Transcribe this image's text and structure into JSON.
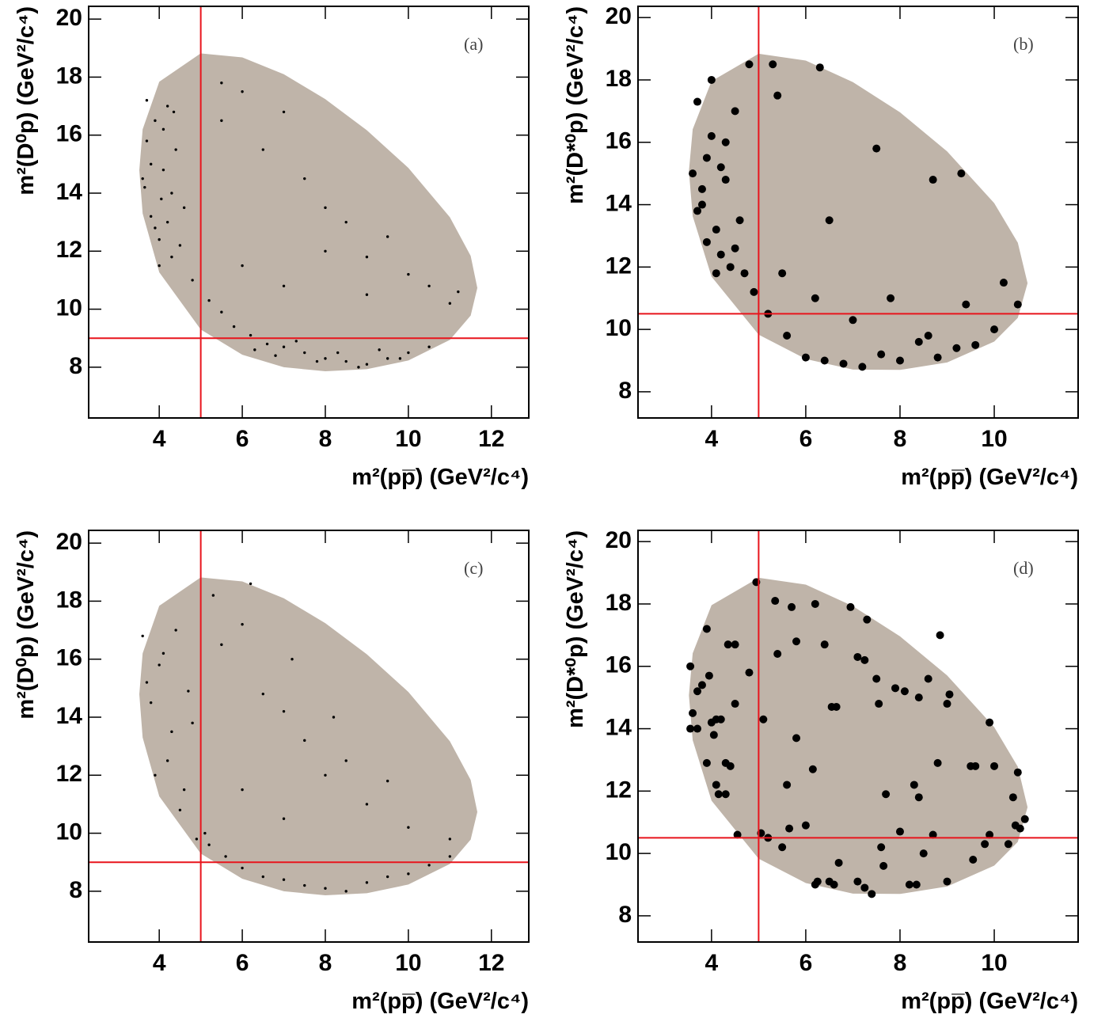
{
  "chart_data": [
    {
      "type": "scatter",
      "label": "(a)",
      "x_label": "m²(pp̅) (GeV²/c⁴)",
      "y_label": "m²(D⁰p) (GeV²/c⁴)",
      "xlim": [
        2.3,
        12.9
      ],
      "ylim": [
        6.25,
        20.44
      ],
      "xticks": [
        4,
        6,
        8,
        10,
        12
      ],
      "yticks": [
        8,
        10,
        12,
        14,
        16,
        18,
        20
      ],
      "color": "#000000",
      "marker_size": 1.7,
      "vline": 5,
      "hline": 9,
      "line_color": "#e8141c",
      "region": {
        "color": "#bfb4a9",
        "x": [
          3.52,
          3.6,
          4,
          5,
          6,
          7,
          8,
          9,
          10,
          11,
          11.5,
          11.66,
          11.5,
          11,
          10,
          9,
          8,
          7,
          6,
          5,
          4,
          3.6
        ],
        "y": [
          14.79,
          16.2,
          17.84,
          18.82,
          18.68,
          18.1,
          17.24,
          16.17,
          14.87,
          13.17,
          11.84,
          10.73,
          9.78,
          8.94,
          8.23,
          7.93,
          7.86,
          8.0,
          8.43,
          9.3,
          11.27,
          13.3
        ]
      },
      "x": [
        3.6,
        3.7,
        3.8,
        3.9,
        4.0,
        4.1,
        4.2,
        4.3,
        4.4,
        4.5,
        3.7,
        3.9,
        4.1,
        4.3,
        3.8,
        4.0,
        4.2,
        4.6,
        4.8,
        3.65,
        4.05,
        4.35,
        5.2,
        5.5,
        5.8,
        6.2,
        6.6,
        7.0,
        7.5,
        8.0,
        8.5,
        9.0,
        9.5,
        10.0,
        10.5,
        6.3,
        6.8,
        7.3,
        7.8,
        8.3,
        8.8,
        9.3,
        9.8,
        6,
        7,
        8,
        9,
        10,
        11,
        5.5,
        6.5,
        7.5,
        8.5,
        9.5,
        10.5,
        11.2,
        6,
        7,
        8,
        9,
        5.5
      ],
      "y": [
        14.5,
        15.8,
        13.2,
        16.5,
        12.4,
        14.8,
        13.0,
        11.8,
        15.5,
        12.2,
        17.2,
        12.8,
        16.2,
        14.0,
        15.0,
        11.5,
        17.0,
        13.5,
        11.0,
        14.2,
        13.8,
        16.8,
        10.3,
        9.9,
        9.4,
        9.1,
        8.8,
        8.7,
        8.5,
        8.3,
        8.2,
        8.1,
        8.3,
        8.5,
        8.7,
        8.6,
        8.4,
        8.9,
        8.2,
        8.5,
        8.0,
        8.6,
        8.3,
        11.5,
        10.8,
        12.0,
        10.5,
        11.2,
        10.2,
        16.5,
        15.5,
        14.5,
        13.0,
        12.5,
        10.8,
        10.6,
        17.5,
        16.8,
        13.5,
        11.8,
        17.8
      ]
    },
    {
      "type": "scatter",
      "label": "(b)",
      "x_label": "m²(pp̅) (GeV²/c⁴)",
      "y_label": "m²(D*⁰p) (GeV²/c⁴)",
      "xlim": [
        2.44,
        11.78
      ],
      "ylim": [
        7.16,
        20.36
      ],
      "xticks": [
        4,
        6,
        8,
        10
      ],
      "yticks": [
        8,
        10,
        12,
        14,
        16,
        18,
        20
      ],
      "color": "#000000",
      "marker_size": 5,
      "vline": 5,
      "hline": 10.5,
      "line_color": "#e8141c",
      "region": {
        "color": "#bfb4a9",
        "x": [
          3.52,
          3.6,
          4,
          5,
          6,
          7,
          8,
          9,
          10,
          10.5,
          10.706,
          10.5,
          10,
          9,
          8,
          7,
          6,
          5,
          4,
          3.6
        ],
        "y": [
          15.07,
          16.42,
          17.96,
          18.84,
          18.62,
          17.93,
          16.96,
          15.71,
          14.05,
          12.78,
          11.48,
          10.37,
          9.61,
          8.94,
          8.7,
          8.71,
          9.05,
          9.83,
          11.69,
          13.63
        ]
      },
      "x": [
        3.6,
        3.7,
        3.8,
        3.9,
        4.0,
        4.1,
        4.2,
        4.3,
        4.4,
        4.5,
        4.6,
        4.7,
        3.7,
        3.9,
        4.1,
        4.3,
        4.5,
        3.8,
        4.0,
        4.2,
        4.8,
        4.9,
        5.2,
        5.6,
        6.0,
        6.4,
        6.8,
        7.2,
        7.6,
        8.0,
        8.4,
        8.8,
        9.2,
        9.6,
        10.0,
        5.5,
        6.2,
        7.0,
        7.8,
        8.6,
        9.4,
        10.2,
        10.5,
        5.4,
        6.3,
        7.5,
        8.7,
        9.3,
        5.3,
        6.5
      ],
      "y": [
        15.0,
        13.8,
        14.5,
        12.8,
        16.2,
        13.2,
        12.4,
        14.8,
        12.0,
        17.0,
        13.5,
        11.8,
        17.3,
        15.5,
        11.8,
        16.0,
        12.6,
        14.0,
        18.0,
        15.2,
        18.5,
        11.2,
        10.5,
        9.8,
        9.1,
        9.0,
        8.9,
        8.8,
        9.2,
        9.0,
        9.6,
        9.1,
        9.4,
        9.5,
        10.0,
        11.8,
        11.0,
        10.3,
        11.0,
        9.8,
        10.8,
        11.5,
        10.8,
        17.5,
        18.4,
        15.8,
        14.8,
        15.0,
        18.5,
        13.5
      ]
    },
    {
      "type": "scatter",
      "label": "(c)",
      "x_label": "m²(pp̅) (GeV²/c⁴)",
      "y_label": "m²(D⁰p) (GeV²/c⁴)",
      "xlim": [
        2.3,
        12.9
      ],
      "ylim": [
        6.25,
        20.44
      ],
      "xticks": [
        4,
        6,
        8,
        10,
        12
      ],
      "yticks": [
        8,
        10,
        12,
        14,
        16,
        18,
        20
      ],
      "color": "#000000",
      "marker_size": 1.7,
      "vline": 5,
      "hline": 9,
      "line_color": "#e8141c",
      "region": {
        "color": "#bfb4a9",
        "x": [
          3.52,
          3.6,
          4,
          5,
          6,
          7,
          8,
          9,
          10,
          11,
          11.5,
          11.66,
          11.5,
          11,
          10,
          9,
          8,
          7,
          6,
          5,
          4,
          3.6
        ],
        "y": [
          14.79,
          16.2,
          17.84,
          18.82,
          18.68,
          18.1,
          17.24,
          16.17,
          14.87,
          13.17,
          11.84,
          10.73,
          9.78,
          8.94,
          8.23,
          7.93,
          7.86,
          8.0,
          8.43,
          9.3,
          11.27,
          13.3
        ]
      },
      "x": [
        3.6,
        3.8,
        4.0,
        4.2,
        4.4,
        4.6,
        4.8,
        3.7,
        3.9,
        4.1,
        4.3,
        4.5,
        4.7,
        5.2,
        5.6,
        6.0,
        6.5,
        7.0,
        7.5,
        8.0,
        8.5,
        9.0,
        9.5,
        10.0,
        10.5,
        11.0,
        6,
        7,
        8,
        9,
        10,
        11,
        5.5,
        6.5,
        7.5,
        8.5,
        9.5,
        5.3,
        6.2,
        7.2,
        8.2,
        4.9,
        5.1,
        6.0,
        7.0
      ],
      "y": [
        16.8,
        14.5,
        15.8,
        12.5,
        17.0,
        11.5,
        13.8,
        15.2,
        12.0,
        16.2,
        13.5,
        10.8,
        14.9,
        9.6,
        9.2,
        8.8,
        8.5,
        8.4,
        8.2,
        8.1,
        8.0,
        8.3,
        8.5,
        8.6,
        8.9,
        9.2,
        11.5,
        10.5,
        12.0,
        11.0,
        10.2,
        9.8,
        16.5,
        14.8,
        13.2,
        12.5,
        11.8,
        18.2,
        18.6,
        16.0,
        14.0,
        9.8,
        10.0,
        17.2,
        14.2
      ]
    },
    {
      "type": "scatter",
      "label": "(d)",
      "x_label": "m²(pp̅) (GeV²/c⁴)",
      "y_label": "m²(D*⁰p) (GeV²/c⁴)",
      "xlim": [
        2.44,
        11.78
      ],
      "ylim": [
        7.16,
        20.36
      ],
      "xticks": [
        4,
        6,
        8,
        10
      ],
      "yticks": [
        8,
        10,
        12,
        14,
        16,
        18,
        20
      ],
      "color": "#000000",
      "marker_size": 5,
      "vline": 5,
      "hline": 10.5,
      "line_color": "#e8141c",
      "region": {
        "color": "#bfb4a9",
        "x": [
          3.52,
          3.6,
          4,
          5,
          6,
          7,
          8,
          9,
          10,
          10.5,
          10.706,
          10.5,
          10,
          9,
          8,
          7,
          6,
          5,
          4,
          3.6
        ],
        "y": [
          15.07,
          16.42,
          17.96,
          18.84,
          18.62,
          17.93,
          16.96,
          15.71,
          14.05,
          12.78,
          11.48,
          10.37,
          9.61,
          8.94,
          8.7,
          8.71,
          9.05,
          9.83,
          11.69,
          13.63
        ]
      },
      "x": [
        3.55,
        3.6,
        3.55,
        3.7,
        3.7,
        3.8,
        3.9,
        3.9,
        3.95,
        4.0,
        4.05,
        4.1,
        4.1,
        4.15,
        4.2,
        4.3,
        4.3,
        4.35,
        4.4,
        4.5,
        4.5,
        4.55,
        4.8,
        4.95,
        5.1,
        5.05,
        5.35,
        5.4,
        5.5,
        5.6,
        5.65,
        5.7,
        5.8,
        5.8,
        6.0,
        6.15,
        6.2,
        6.25,
        6.2,
        6.4,
        6.5,
        6.55,
        6.6,
        6.65,
        6.7,
        6.95,
        7.1,
        7.25,
        7.3,
        7.1,
        7.25,
        7.4,
        7.5,
        7.55,
        7.6,
        7.7,
        7.65,
        7.9,
        8.0,
        8.1,
        8.3,
        8.35,
        8.4,
        8.4,
        8.5,
        8.6,
        8.7,
        8.8,
        8.85,
        9.0,
        9.05,
        9.0,
        9.55,
        9.5,
        9.6,
        9.9,
        9.9,
        10.0,
        10.3,
        10.4,
        10.45,
        10.5,
        10.55,
        10.65,
        9.8,
        8.2,
        5.2
      ],
      "y": [
        16.0,
        14.5,
        14.0,
        14.0,
        15.2,
        15.4,
        17.2,
        12.9,
        15.7,
        14.2,
        13.8,
        14.3,
        12.2,
        11.9,
        14.3,
        12.9,
        11.9,
        16.7,
        12.8,
        16.7,
        14.8,
        10.6,
        15.8,
        18.7,
        14.3,
        10.65,
        18.1,
        16.4,
        10.2,
        12.2,
        10.8,
        17.9,
        13.7,
        16.8,
        10.9,
        12.7,
        18.0,
        9.1,
        9.0,
        16.7,
        9.1,
        14.7,
        9.0,
        14.7,
        9.7,
        17.9,
        16.3,
        16.2,
        17.5,
        9.1,
        8.9,
        8.7,
        15.6,
        14.8,
        10.2,
        11.9,
        9.6,
        15.3,
        10.7,
        15.2,
        12.2,
        9.0,
        11.8,
        15.0,
        10.0,
        15.6,
        10.6,
        12.9,
        17.0,
        14.8,
        15.1,
        9.1,
        9.8,
        12.8,
        12.8,
        10.6,
        14.2,
        12.8,
        10.3,
        11.8,
        10.9,
        12.6,
        10.8,
        11.1,
        10.3,
        9.0,
        10.5
      ]
    }
  ]
}
